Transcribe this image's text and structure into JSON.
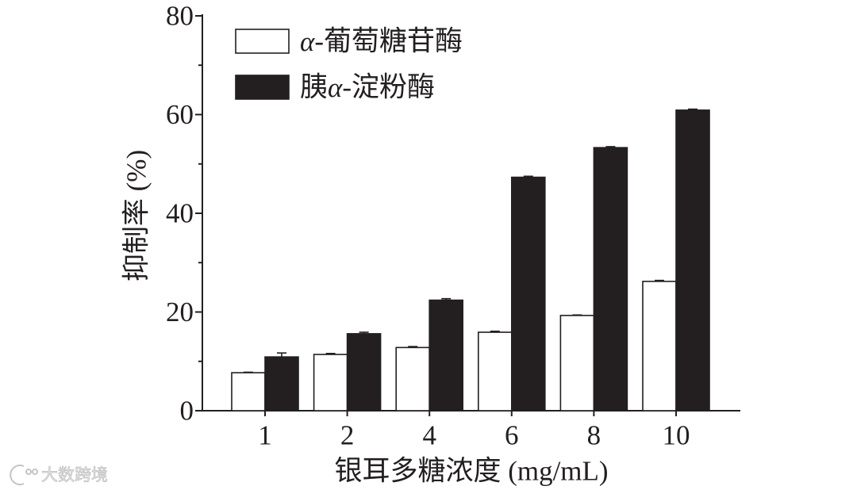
{
  "chart_data": {
    "type": "bar",
    "categories": [
      "1",
      "2",
      "4",
      "6",
      "8",
      "10"
    ],
    "series": [
      {
        "name": "α-葡萄糖苷酶",
        "values": [
          7.7,
          11.4,
          12.8,
          15.9,
          19.3,
          26.2
        ],
        "errors": [
          0.1,
          0.2,
          0.2,
          0.2,
          0.1,
          0.2
        ],
        "color": "#ffffff"
      },
      {
        "name": "胰α-淀粉酶",
        "values": [
          10.9,
          15.6,
          22.4,
          47.3,
          53.3,
          60.9
        ],
        "errors": [
          0.8,
          0.3,
          0.3,
          0.2,
          0.2,
          0.2
        ],
        "color": "#231f20"
      }
    ],
    "xlabel": "银耳多糖浓度 (mg/mL)",
    "ylabel": "抑制率 (%)",
    "ylim": [
      0,
      80
    ],
    "yticks": [
      0,
      20,
      40,
      60,
      80
    ],
    "grid": false,
    "legend": "top-left",
    "axis_color": "#231f20"
  },
  "watermark": {
    "text": "大数跨境",
    "icon": "logo-icon",
    "color": "#cfcfcf"
  }
}
